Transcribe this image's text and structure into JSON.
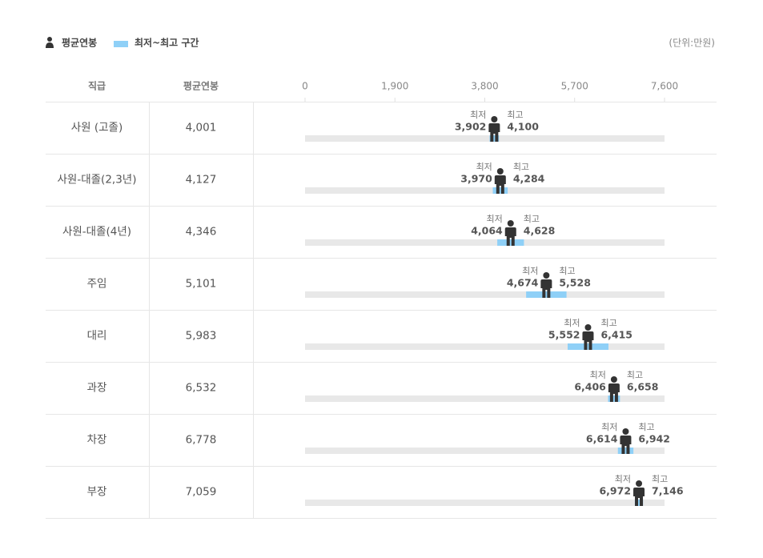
{
  "chart_data": {
    "type": "range",
    "legend": {
      "avg_label": "평균연봉",
      "range_label": "최저~최고 구간"
    },
    "unit": "(단위:만원)",
    "columns": [
      "직급",
      "평균연봉"
    ],
    "low_label": "최저",
    "high_label": "최고",
    "categories": [
      "사원 (고졸)",
      "사원-대졸(2,3년)",
      "사원-대졸(4년)",
      "주임",
      "대리",
      "과장",
      "차장",
      "부장"
    ],
    "series": [
      {
        "name": "평균연봉",
        "color": "#333333",
        "values": [
          4001,
          4127,
          4346,
          5101,
          5983,
          6532,
          6778,
          7059
        ],
        "value_labels": [
          "4,001",
          "4,127",
          "4,346",
          "5,101",
          "5,983",
          "6,532",
          "6,778",
          "7,059"
        ]
      },
      {
        "name": "최저",
        "values": [
          3902,
          3970,
          4064,
          4674,
          5552,
          6406,
          6614,
          6972
        ],
        "value_labels": [
          "3,902",
          "3,970",
          "4,064",
          "4,674",
          "5,552",
          "6,406",
          "6,614",
          "6,972"
        ]
      },
      {
        "name": "최고",
        "values": [
          4100,
          4284,
          4628,
          5528,
          6415,
          6658,
          6942,
          7146
        ],
        "value_labels": [
          "4,100",
          "4,284",
          "4,628",
          "5,528",
          "6,415",
          "6,658",
          "6,942",
          "7,146"
        ]
      }
    ],
    "range_color": "#8fd0f7",
    "track_color": "#e8e8e8",
    "xlim": [
      0,
      7600
    ],
    "xticks": [
      0,
      {
        "value": 1900,
        "label": "1,900"
      },
      {
        "value": 3800,
        "label": "3,800"
      },
      {
        "value": 5700,
        "label": "5,700"
      },
      {
        "value": 7600,
        "label": "7,600"
      }
    ]
  }
}
